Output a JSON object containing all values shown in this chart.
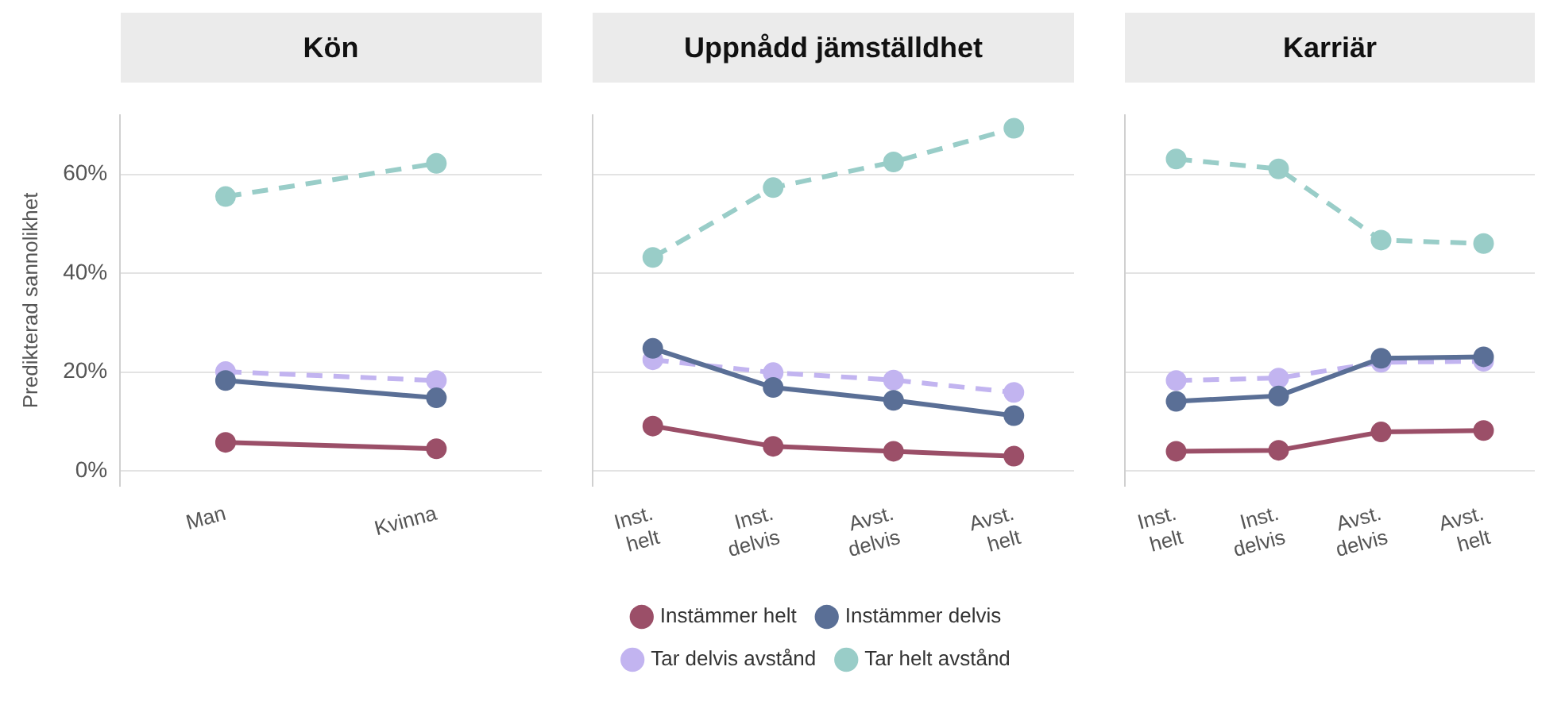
{
  "chart_data": [
    {
      "type": "line",
      "title": "Kön",
      "ylabel": "Predikterad sannolikhet",
      "categories": [
        "Man",
        "Kvinna"
      ],
      "ylim": [
        -3,
        72
      ],
      "yticks": [
        {
          "value": 0,
          "label": "0%"
        },
        {
          "value": 20,
          "label": "20%"
        },
        {
          "value": 40,
          "label": "40%"
        },
        {
          "value": 60,
          "label": "60%"
        }
      ],
      "grid": "y",
      "legend": false,
      "marker": "circle",
      "series": [
        {
          "color": "#9b4f68",
          "values": [
            5.8,
            4.5
          ],
          "line_style": "solid"
        },
        {
          "color": "#5a6f96",
          "values": [
            18.3,
            14.8
          ],
          "line_style": "solid"
        },
        {
          "color": "#c2b4f0",
          "values": [
            20.1,
            18.3
          ],
          "line_style": "dashed"
        },
        {
          "color": "#99cdc8",
          "values": [
            55.5,
            62.2
          ],
          "line_style": "dashed"
        }
      ]
    },
    {
      "type": "line",
      "title": "Uppnådd jämställdhet",
      "categories": [
        "Inst. helt",
        "Inst. delvis",
        "Avst. delvis",
        "Avst. helt"
      ],
      "ylim": [
        -3,
        72
      ],
      "yticks": [
        0,
        20,
        40,
        60
      ],
      "grid": "y",
      "tick_labels": "x",
      "legend": "bottom",
      "marker": "circle",
      "series": [
        {
          "name": "Instämmer helt",
          "color": "#9b4f68",
          "values": [
            9.1,
            5.0,
            4.0,
            3.0
          ],
          "line_style": "solid"
        },
        {
          "name": "Instämmer delvis",
          "color": "#5a6f96",
          "values": [
            24.8,
            16.9,
            14.3,
            11.2
          ],
          "line_style": "solid"
        },
        {
          "name": "Tar delvis avstånd",
          "color": "#c2b4f0",
          "values": [
            22.5,
            19.9,
            18.4,
            15.9
          ],
          "line_style": "dashed"
        },
        {
          "name": "Tar helt avstånd",
          "color": "#99cdc8",
          "values": [
            43.2,
            57.3,
            62.5,
            69.3
          ],
          "line_style": "dashed"
        }
      ]
    },
    {
      "type": "line",
      "title": "Karriär",
      "categories": [
        "Inst. helt",
        "Inst. delvis",
        "Avst. delvis",
        "Avst. helt"
      ],
      "ylim": [
        -3,
        72
      ],
      "yticks": [
        0,
        20,
        40,
        60
      ],
      "grid": "y",
      "tick_labels": "x",
      "legend": false,
      "marker": "circle",
      "series": [
        {
          "color": "#9b4f68",
          "values": [
            4.0,
            4.2,
            7.9,
            8.2
          ],
          "line_style": "solid"
        },
        {
          "color": "#5a6f96",
          "values": [
            14.1,
            15.2,
            22.8,
            23.1
          ],
          "line_style": "solid"
        },
        {
          "color": "#c2b4f0",
          "values": [
            18.3,
            18.8,
            22.0,
            22.2
          ],
          "line_style": "dashed"
        },
        {
          "color": "#99cdc8",
          "values": [
            63.1,
            61.1,
            46.7,
            46.0
          ],
          "line_style": "dashed"
        }
      ]
    }
  ]
}
